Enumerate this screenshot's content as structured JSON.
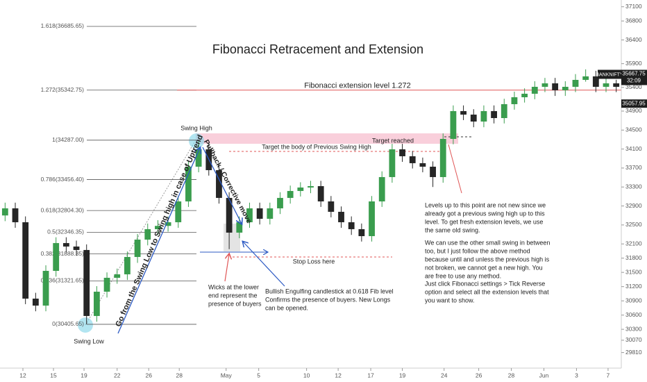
{
  "chart_data": {
    "type": "candlestick",
    "title": "Fibonacci Retracement and Extension",
    "up_color": "#3a9d4e",
    "down_color": "#262626",
    "xlim": [
      -0.5,
      60.5
    ],
    "xticks": [
      {
        "value": 1.75,
        "label": "12"
      },
      {
        "value": 4.75,
        "label": "15"
      },
      {
        "value": 7.75,
        "label": "19"
      },
      {
        "value": 11,
        "label": "22"
      },
      {
        "value": 14.1,
        "label": "26"
      },
      {
        "value": 17.1,
        "label": "28"
      },
      {
        "value": 21.7,
        "label": "May"
      },
      {
        "value": 24.9,
        "label": "5"
      },
      {
        "value": 29.6,
        "label": "10"
      },
      {
        "value": 32.7,
        "label": "12"
      },
      {
        "value": 35.9,
        "label": "17"
      },
      {
        "value": 39,
        "label": "19"
      },
      {
        "value": 43.1,
        "label": "24"
      },
      {
        "value": 46.5,
        "label": "26"
      },
      {
        "value": 49.7,
        "label": "28"
      },
      {
        "value": 52.9,
        "label": "Jun"
      },
      {
        "value": 56.1,
        "label": "3"
      },
      {
        "value": 59.2,
        "label": "7"
      }
    ],
    "ylim": [
      29482,
      37242
    ],
    "yticks": [
      37100,
      36800,
      36400,
      35900,
      35400,
      34900,
      34500,
      34100,
      33700,
      33300,
      32900,
      32500,
      32100,
      31800,
      31500,
      31200,
      30900,
      30600,
      30300,
      30070,
      29810
    ],
    "candles": [
      [
        32700,
        32970,
        32580,
        32850
      ],
      [
        32850,
        32970,
        32440,
        32557
      ],
      [
        32557,
        32680,
        30830,
        30947
      ],
      [
        30947,
        31070,
        30680,
        30800
      ],
      [
        30800,
        31650,
        30680,
        31532
      ],
      [
        31532,
        32240,
        31410,
        32118
      ],
      [
        32118,
        32240,
        31920,
        32045
      ],
      [
        32045,
        32170,
        31850,
        31972
      ],
      [
        31972,
        32090,
        30405,
        30581
      ],
      [
        30581,
        31210,
        30460,
        31093
      ],
      [
        31093,
        31500,
        30970,
        31386
      ],
      [
        31386,
        31580,
        31260,
        31459
      ],
      [
        31459,
        31940,
        31340,
        31825
      ],
      [
        31825,
        32310,
        31700,
        32191
      ],
      [
        32191,
        32530,
        32070,
        32411
      ],
      [
        32411,
        32600,
        32290,
        32480
      ],
      [
        32480,
        32680,
        32360,
        32557
      ],
      [
        32557,
        33110,
        32440,
        32996
      ],
      [
        32996,
        33840,
        32880,
        33728
      ],
      [
        33728,
        34287,
        33610,
        34094
      ],
      [
        34094,
        34210,
        33540,
        33655
      ],
      [
        33655,
        33770,
        32950,
        33070
      ],
      [
        33070,
        33190,
        31990,
        32338
      ],
      [
        32338,
        32680,
        32220,
        32557
      ],
      [
        32557,
        32970,
        32440,
        32850
      ],
      [
        32850,
        32970,
        32510,
        32630
      ],
      [
        32630,
        32970,
        32510,
        32850
      ],
      [
        32850,
        33190,
        32730,
        33070
      ],
      [
        33070,
        33330,
        32950,
        33216
      ],
      [
        33216,
        33400,
        33100,
        33289
      ],
      [
        33289,
        33430,
        33170,
        33318
      ],
      [
        33318,
        33430,
        32880,
        32996
      ],
      [
        32996,
        33110,
        32660,
        32777
      ],
      [
        32777,
        32890,
        32440,
        32557
      ],
      [
        32557,
        32680,
        32290,
        32411
      ],
      [
        32411,
        32530,
        32150,
        32264
      ],
      [
        32264,
        33110,
        32150,
        32996
      ],
      [
        32996,
        33630,
        32880,
        33509
      ],
      [
        33509,
        34210,
        33390,
        34094
      ],
      [
        34094,
        34210,
        33830,
        33948
      ],
      [
        33948,
        34060,
        33690,
        33802
      ],
      [
        33802,
        33920,
        33610,
        33728
      ],
      [
        33728,
        33840,
        33300,
        33509
      ],
      [
        33509,
        34430,
        33390,
        34314
      ],
      [
        34314,
        35020,
        34200,
        34900
      ],
      [
        34900,
        35020,
        34710,
        34826
      ],
      [
        34826,
        34940,
        34560,
        34680
      ],
      [
        34680,
        35020,
        34560,
        34900
      ],
      [
        34900,
        35020,
        34640,
        34753
      ],
      [
        34753,
        35160,
        34640,
        35046
      ],
      [
        35046,
        35310,
        34930,
        35192
      ],
      [
        35192,
        35380,
        35080,
        35266
      ],
      [
        35266,
        35530,
        35150,
        35412
      ],
      [
        35412,
        35600,
        35300,
        35485
      ],
      [
        35485,
        35600,
        35220,
        35339
      ],
      [
        35339,
        35530,
        35220,
        35412
      ],
      [
        35412,
        35680,
        35300,
        35558
      ],
      [
        35558,
        35780,
        35520,
        35632
      ],
      [
        35632,
        35750,
        35300,
        35412
      ],
      [
        35412,
        35600,
        35300,
        35485
      ],
      [
        35485,
        35560,
        35300,
        35412
      ]
    ],
    "fib_levels": [
      {
        "value": 36685.65,
        "label": "1.618(36685.65)"
      },
      {
        "value": 35342.75,
        "label": "1.272(35342.75)"
      },
      {
        "value": 34287.0,
        "label": "1(34287.00)"
      },
      {
        "value": 33456.4,
        "label": "0.786(33456.40)"
      },
      {
        "value": 32804.3,
        "label": "0.618(32804.30)"
      },
      {
        "value": 32346.35,
        "label": "0.5(32346.35)"
      },
      {
        "value": 31888.35,
        "label": "0.382(31888.35)"
      },
      {
        "value": 31321.65,
        "label": "0.236(31321.65)"
      },
      {
        "value": 30405.65,
        "label": "0(30405.65)"
      }
    ],
    "extension_label": "Fibonacci extension level 1.272",
    "symbol": "BANKNIFTY",
    "last_price": 35667.75,
    "countdown": "32:09",
    "marked_price": 35057.95,
    "annotations": {
      "swing_high": "Swing High",
      "swing_low": "Swing Low",
      "pullback": "Pullback / Corrective move",
      "uptrend": "Go from the Swing Low to Swing high in case of Uptrend",
      "target_body": "Target the body of Previous Swing High",
      "target_reached": "Target reached",
      "stop_loss": "Stop Loss here",
      "wicks": [
        "Wicks at the lower",
        "end represent the",
        "presence of buyers"
      ],
      "engulfing": [
        "Bullish Engulfing candlestick at 0.618 Fib level",
        "Confirms the presence of buyers. New Longs",
        "can be opened."
      ],
      "note": [
        "Levels up to this point are not new since we",
        "already got a previous swing high up to this",
        "level. To get fresh extension levels, we use",
        "the same old swing.",
        "We can use the other small swing in between",
        "too, but I just follow the above method",
        "because until and unless the previous high is",
        "not broken, we cannot get a new high. You",
        "are free to use any method.",
        "Just click Fibonacci settings > Tick Reverse",
        "option and select all the extension levels that",
        "you want to show."
      ]
    }
  }
}
